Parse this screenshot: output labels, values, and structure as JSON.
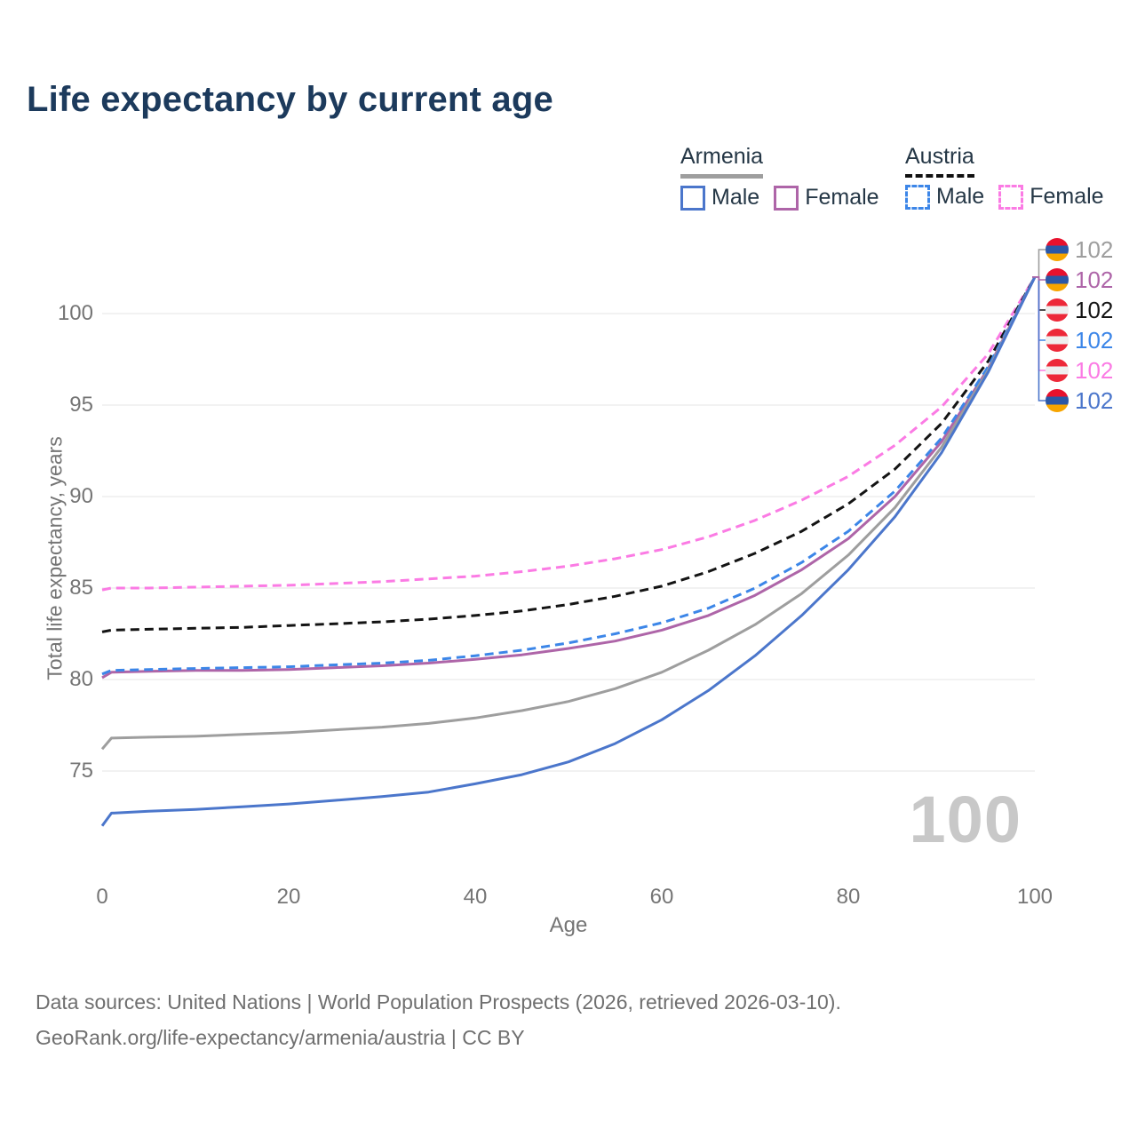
{
  "title": "Life expectancy by current age",
  "legend": {
    "groups": [
      {
        "name": "Armenia",
        "underline": "solid",
        "underline_color": "#9e9e9e",
        "items": [
          {
            "label": "Male",
            "color": "#4B76CB",
            "dashed": false
          },
          {
            "label": "Female",
            "color": "#AE65A8",
            "dashed": false
          }
        ]
      },
      {
        "name": "Austria",
        "underline": "dashed",
        "underline_color": "#111111",
        "items": [
          {
            "label": "Male",
            "color": "#3C86E8",
            "dashed": true
          },
          {
            "label": "Female",
            "color": "#FB7BE4",
            "dashed": true
          }
        ]
      }
    ]
  },
  "chart_data": {
    "type": "line",
    "title": "Life expectancy by current age",
    "xlabel": "Age",
    "ylabel": "Total life expectancy, years",
    "x_ticks": [
      0,
      20,
      40,
      60,
      80,
      100
    ],
    "y_ticks": [
      75,
      80,
      85,
      90,
      95,
      100
    ],
    "xlim": [
      0,
      100
    ],
    "ylim": [
      71.5,
      103
    ],
    "grid": "horizontal",
    "legend_position": "top-right",
    "ages": [
      0,
      1,
      5,
      10,
      15,
      20,
      25,
      30,
      35,
      40,
      45,
      50,
      55,
      60,
      65,
      70,
      75,
      80,
      85,
      90,
      95,
      100
    ],
    "series": [
      {
        "name": "Austria Female",
        "country": "Austria",
        "sex": "Female",
        "color": "#FB7BE4",
        "dashed": true,
        "values": [
          84.9,
          85.0,
          85.0,
          85.05,
          85.1,
          85.15,
          85.25,
          85.35,
          85.5,
          85.65,
          85.9,
          86.2,
          86.6,
          87.1,
          87.8,
          88.7,
          89.8,
          91.1,
          92.8,
          94.9,
          97.8,
          102
        ]
      },
      {
        "name": "Austria Both sexes",
        "country": "Austria",
        "sex": "Both",
        "color": "#141414",
        "dashed": true,
        "values": [
          82.6,
          82.7,
          82.75,
          82.8,
          82.85,
          82.95,
          83.05,
          83.15,
          83.3,
          83.5,
          83.75,
          84.1,
          84.55,
          85.1,
          85.9,
          86.9,
          88.1,
          89.6,
          91.5,
          94.0,
          97.4,
          102
        ]
      },
      {
        "name": "Armenia Female",
        "country": "Armenia",
        "sex": "Female",
        "color": "#AE65A8",
        "dashed": false,
        "values": [
          80.1,
          80.4,
          80.45,
          80.5,
          80.5,
          80.55,
          80.65,
          80.75,
          80.9,
          81.1,
          81.35,
          81.7,
          82.1,
          82.7,
          83.5,
          84.6,
          86.0,
          87.7,
          90.0,
          93.0,
          97.0,
          102
        ]
      },
      {
        "name": "Austria Male",
        "country": "Austria",
        "sex": "Male",
        "color": "#3C86E8",
        "dashed": true,
        "values": [
          80.3,
          80.5,
          80.55,
          80.6,
          80.65,
          80.7,
          80.8,
          80.9,
          81.05,
          81.3,
          81.6,
          82.0,
          82.5,
          83.1,
          83.9,
          85.0,
          86.4,
          88.1,
          90.3,
          93.2,
          97.1,
          102
        ]
      },
      {
        "name": "Armenia Both sexes",
        "country": "Armenia",
        "sex": "Both",
        "color": "#9E9E9E",
        "dashed": false,
        "values": [
          76.2,
          76.8,
          76.85,
          76.9,
          77.0,
          77.1,
          77.25,
          77.4,
          77.6,
          77.9,
          78.3,
          78.8,
          79.5,
          80.4,
          81.6,
          83.0,
          84.7,
          86.8,
          89.4,
          92.7,
          96.9,
          102
        ]
      },
      {
        "name": "Armenia Male",
        "country": "Armenia",
        "sex": "Male",
        "color": "#4B76CB",
        "dashed": false,
        "values": [
          72.0,
          72.7,
          72.8,
          72.9,
          73.05,
          73.2,
          73.4,
          73.6,
          73.85,
          74.3,
          74.8,
          75.5,
          76.5,
          77.8,
          79.4,
          81.3,
          83.5,
          86.0,
          88.9,
          92.4,
          96.8,
          102
        ]
      }
    ]
  },
  "end_labels": [
    {
      "flag": "armenia",
      "value": "102",
      "color": "#9E9E9E",
      "series": "Armenia Both sexes"
    },
    {
      "flag": "armenia",
      "value": "102",
      "color": "#AE65A8",
      "series": "Armenia Female"
    },
    {
      "flag": "austria",
      "value": "102",
      "color": "#141414",
      "series": "Austria Both sexes"
    },
    {
      "flag": "austria",
      "value": "102",
      "color": "#3C86E8",
      "series": "Austria Male"
    },
    {
      "flag": "austria",
      "value": "102",
      "color": "#FB7BE4",
      "series": "Austria Female"
    },
    {
      "flag": "armenia",
      "value": "102",
      "color": "#4B76CB",
      "series": "Armenia Male"
    }
  ],
  "flag_colors": {
    "armenia": [
      "#E8112D",
      "#2B57A7",
      "#F7A500"
    ],
    "austria": [
      "#ED2939",
      "#EFEFEF",
      "#ED2939"
    ]
  },
  "watermark": "100",
  "footer": {
    "line1": "Data sources: United Nations | World Population Prospects (2026, retrieved 2026-03-10).",
    "line2": "GeoRank.org/life-expectancy/armenia/austria | CC BY"
  },
  "colors": {
    "title": "#1c3a5c",
    "axis_text": "#757575",
    "gridline": "#e4e4e4",
    "watermark": "#c8c8c8",
    "footer_text": "#6f6f6f"
  }
}
